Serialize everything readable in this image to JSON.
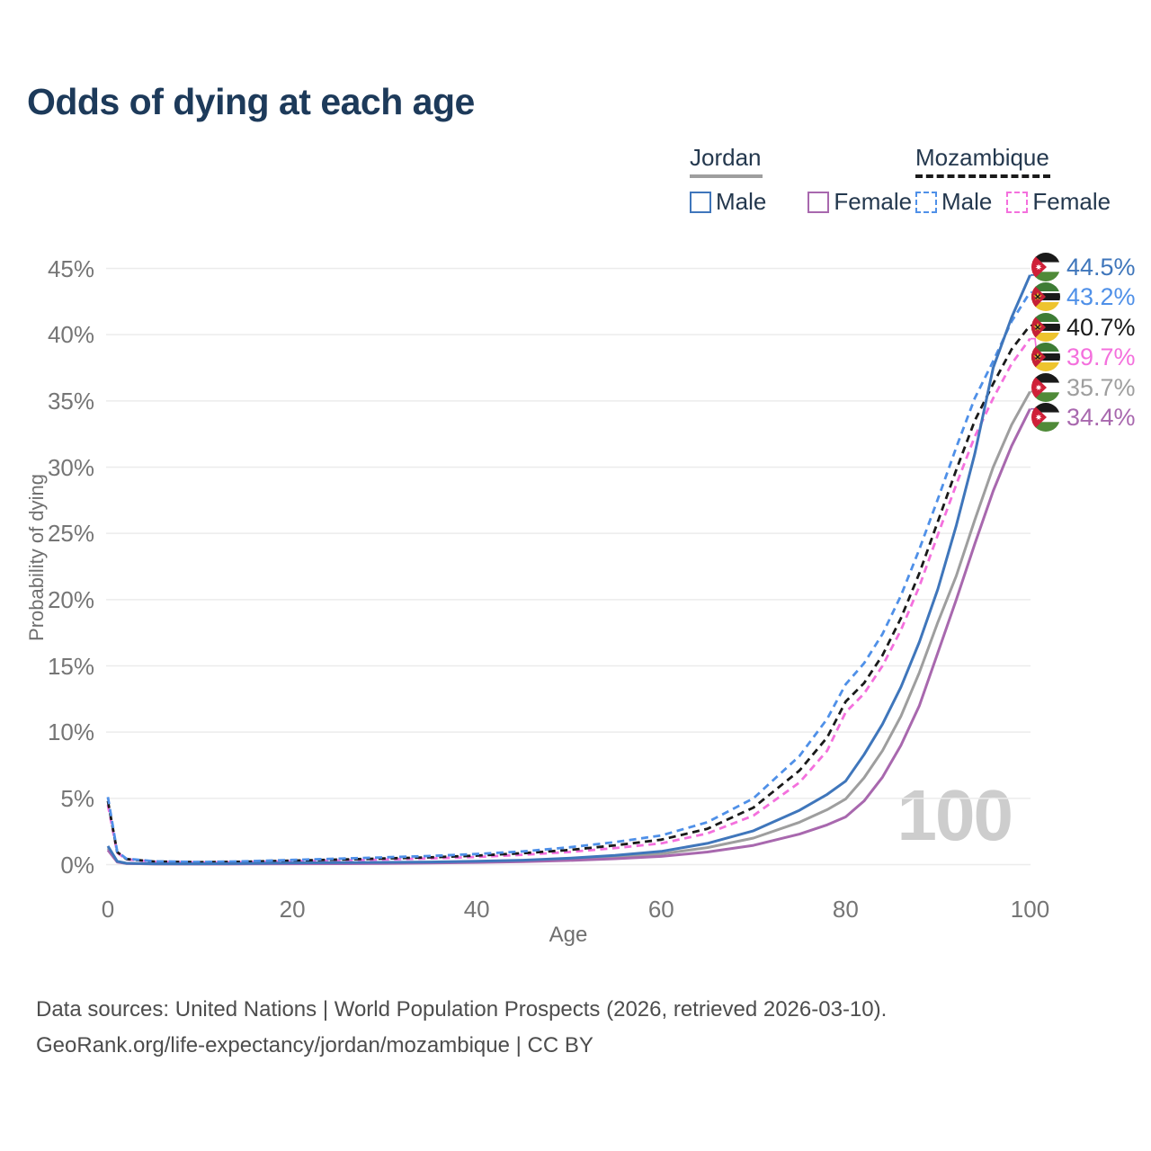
{
  "title": "Odds of dying at each age",
  "legend": {
    "groups": [
      {
        "country": "Jordan",
        "line_style": "solid",
        "underline_color": "#9e9e9e",
        "items": [
          {
            "label": "Male",
            "color": "#3f76bb",
            "dashed": false
          },
          {
            "label": "Female",
            "color": "#a868ae",
            "dashed": false
          }
        ]
      },
      {
        "country": "Mozambique",
        "line_style": "dashed",
        "underline_color": "#1a1a1a",
        "items": [
          {
            "label": "Male",
            "color": "#4f90e8",
            "dashed": true
          },
          {
            "label": "Female",
            "color": "#f470dd",
            "dashed": true
          }
        ]
      }
    ]
  },
  "chart_data": {
    "type": "line",
    "title": "Odds of dying at each age",
    "xlabel": "Age",
    "ylabel": "Probability of dying",
    "xlim": [
      0,
      100
    ],
    "ylim": [
      0,
      45
    ],
    "x_ticks": [
      0,
      20,
      40,
      60,
      80,
      100
    ],
    "y_ticks": [
      0,
      5,
      10,
      15,
      20,
      25,
      30,
      35,
      40,
      45
    ],
    "y_tick_suffix": "%",
    "grid": "horizontal",
    "watermark": "100",
    "x": [
      0,
      1,
      2,
      5,
      10,
      15,
      20,
      25,
      30,
      35,
      40,
      45,
      50,
      55,
      60,
      65,
      70,
      75,
      78,
      80,
      82,
      84,
      86,
      88,
      90,
      92,
      94,
      96,
      98,
      100
    ],
    "series": [
      {
        "name": "Jordan Male",
        "country": "Jordan",
        "sex": "Male",
        "flag": "jordan",
        "color": "#3f76bb",
        "dashed": false,
        "end_label": "44.5%",
        "end_value": 44.5,
        "values": [
          1.4,
          0.25,
          0.1,
          0.06,
          0.06,
          0.09,
          0.13,
          0.15,
          0.17,
          0.2,
          0.25,
          0.33,
          0.48,
          0.7,
          1.0,
          1.6,
          2.55,
          4.1,
          5.3,
          6.3,
          8.3,
          10.6,
          13.4,
          16.8,
          20.8,
          25.6,
          31.0,
          37.5,
          41.3,
          44.5
        ]
      },
      {
        "name": "Mozambique Male",
        "country": "Mozambique",
        "sex": "Male",
        "flag": "mozambique",
        "color": "#4f90e8",
        "dashed": true,
        "end_label": "43.2%",
        "end_value": 43.2,
        "values": [
          5.1,
          1.0,
          0.45,
          0.25,
          0.2,
          0.25,
          0.35,
          0.45,
          0.55,
          0.65,
          0.8,
          1.0,
          1.3,
          1.7,
          2.2,
          3.2,
          5.0,
          8.2,
          11.0,
          13.6,
          15.2,
          17.4,
          20.3,
          23.8,
          27.6,
          31.5,
          35.2,
          38.0,
          41.0,
          43.2
        ]
      },
      {
        "name": "Mozambique Both sexes",
        "country": "Mozambique",
        "sex": "Both sexes",
        "flag": "mozambique",
        "color": "#1a1a1a",
        "dashed": true,
        "end_label": "40.7%",
        "end_value": 40.7,
        "values": [
          4.8,
          0.95,
          0.42,
          0.23,
          0.18,
          0.22,
          0.3,
          0.38,
          0.46,
          0.55,
          0.68,
          0.86,
          1.1,
          1.45,
          1.88,
          2.7,
          4.3,
          7.1,
          9.6,
          12.3,
          13.7,
          15.8,
          18.6,
          22.0,
          25.9,
          29.8,
          33.5,
          36.3,
          38.9,
          40.7
        ]
      },
      {
        "name": "Mozambique Female",
        "country": "Mozambique",
        "sex": "Female",
        "flag": "mozambique",
        "color": "#f470dd",
        "dashed": true,
        "end_label": "39.7%",
        "end_value": 39.7,
        "values": [
          4.5,
          0.9,
          0.4,
          0.21,
          0.16,
          0.19,
          0.26,
          0.32,
          0.39,
          0.47,
          0.58,
          0.74,
          0.95,
          1.25,
          1.6,
          2.35,
          3.7,
          6.2,
          8.6,
          11.5,
          12.9,
          15.0,
          17.7,
          21.0,
          24.9,
          28.7,
          32.3,
          35.2,
          37.8,
          39.7
        ]
      },
      {
        "name": "Jordan Both sexes",
        "country": "Jordan",
        "sex": "Both sexes",
        "flag": "jordan",
        "color": "#9e9e9e",
        "dashed": false,
        "end_label": "35.7%",
        "end_value": 35.7,
        "values": [
          1.25,
          0.22,
          0.09,
          0.055,
          0.05,
          0.07,
          0.1,
          0.11,
          0.13,
          0.16,
          0.2,
          0.28,
          0.4,
          0.57,
          0.81,
          1.28,
          2.0,
          3.2,
          4.15,
          4.95,
          6.55,
          8.6,
          11.2,
          14.5,
          18.3,
          21.8,
          26.0,
          30.0,
          33.2,
          35.7
        ]
      },
      {
        "name": "Jordan Female",
        "country": "Jordan",
        "sex": "Female",
        "flag": "jordan",
        "color": "#a868ae",
        "dashed": false,
        "end_label": "34.4%",
        "end_value": 34.4,
        "values": [
          1.1,
          0.2,
          0.08,
          0.05,
          0.04,
          0.05,
          0.06,
          0.07,
          0.09,
          0.12,
          0.16,
          0.22,
          0.31,
          0.44,
          0.62,
          0.95,
          1.45,
          2.3,
          3.0,
          3.6,
          4.8,
          6.6,
          9.0,
          12.0,
          16.0,
          20.0,
          24.2,
          28.2,
          31.6,
          34.4
        ]
      }
    ]
  },
  "footer": {
    "line1": "Data sources: United Nations | World Population Prospects (2026, retrieved 2026-03-10).",
    "line2": "GeoRank.org/life-expectancy/jordan/mozambique | CC BY"
  }
}
